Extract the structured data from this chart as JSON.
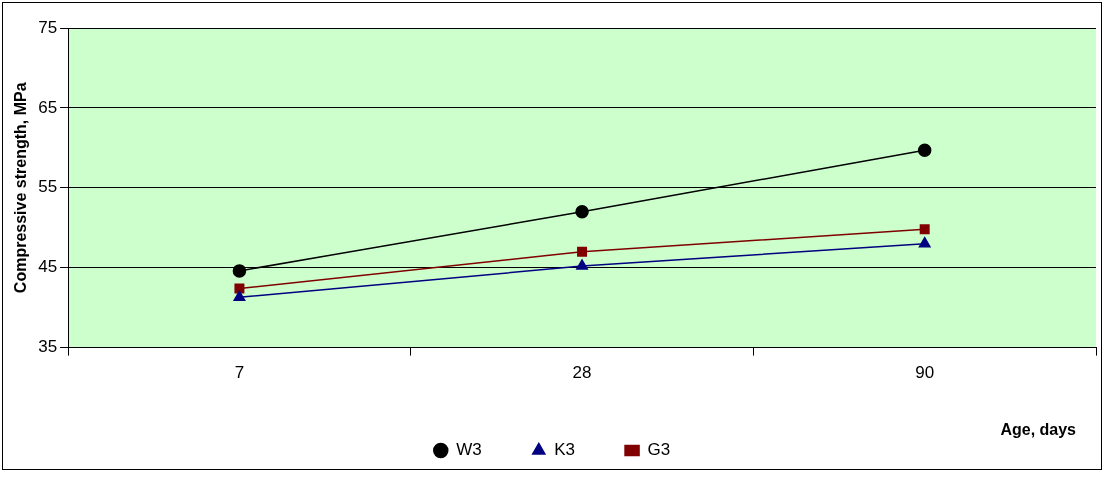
{
  "chart_data": {
    "type": "line",
    "xlabel": "Age, days",
    "ylabel": "Compressive strength, MPa",
    "categories": [
      "7",
      "28",
      "90"
    ],
    "series": [
      {
        "name": "W3",
        "color": "#000000",
        "marker": "circle",
        "values": [
          44.6,
          52.0,
          59.7
        ]
      },
      {
        "name": "K3",
        "color": "#000080",
        "marker": "triangle",
        "values": [
          41.3,
          45.2,
          48.0
        ]
      },
      {
        "name": "G3",
        "color": "#800000",
        "marker": "square",
        "values": [
          42.4,
          47.0,
          49.8
        ]
      }
    ],
    "ylim": [
      35,
      75
    ],
    "yticks": [
      35,
      45,
      55,
      65,
      75
    ],
    "grid": "y",
    "legend": "bottom",
    "line_style": "solid"
  }
}
